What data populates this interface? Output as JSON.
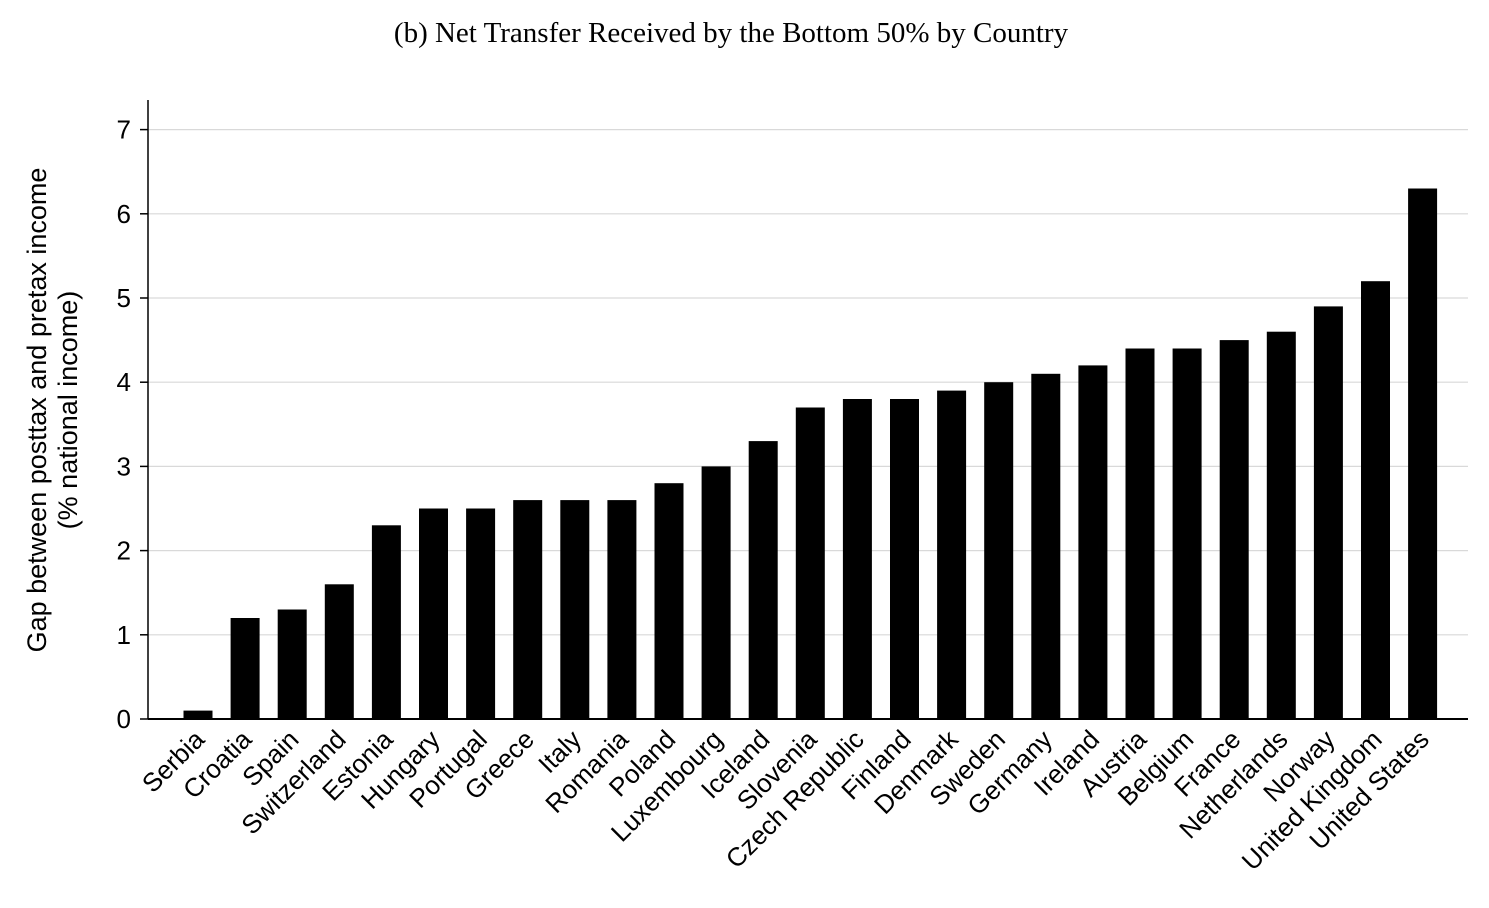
{
  "chart_data": {
    "type": "bar",
    "title": "(b) Net Transfer Received by the Bottom 50% by Country",
    "xlabel": "",
    "ylabel_lines": [
      "Gap between posttax and pretax income",
      "(% national income)"
    ],
    "ylim": [
      0,
      7.3
    ],
    "yticks": [
      0,
      1,
      2,
      3,
      4,
      5,
      6,
      7
    ],
    "grid": true,
    "bar_color": "#000000",
    "grid_color": "#d9d9d9",
    "categories": [
      "Serbia",
      "Croatia",
      "Spain",
      "Switzerland",
      "Estonia",
      "Hungary",
      "Portugal",
      "Greece",
      "Italy",
      "Romania",
      "Poland",
      "Luxembourg",
      "Iceland",
      "Slovenia",
      "Czech Republic",
      "Finland",
      "Denmark",
      "Sweden",
      "Germany",
      "Ireland",
      "Austria",
      "Belgium",
      "France",
      "Netherlands",
      "Norway",
      "United Kingdom",
      "United States"
    ],
    "values": [
      0.1,
      1.2,
      1.3,
      1.6,
      2.3,
      2.5,
      2.5,
      2.6,
      2.6,
      2.6,
      2.8,
      3.0,
      3.3,
      3.7,
      3.8,
      3.8,
      3.9,
      4.0,
      4.1,
      4.2,
      4.4,
      4.4,
      4.5,
      4.6,
      4.9,
      5.2,
      6.3
    ]
  }
}
